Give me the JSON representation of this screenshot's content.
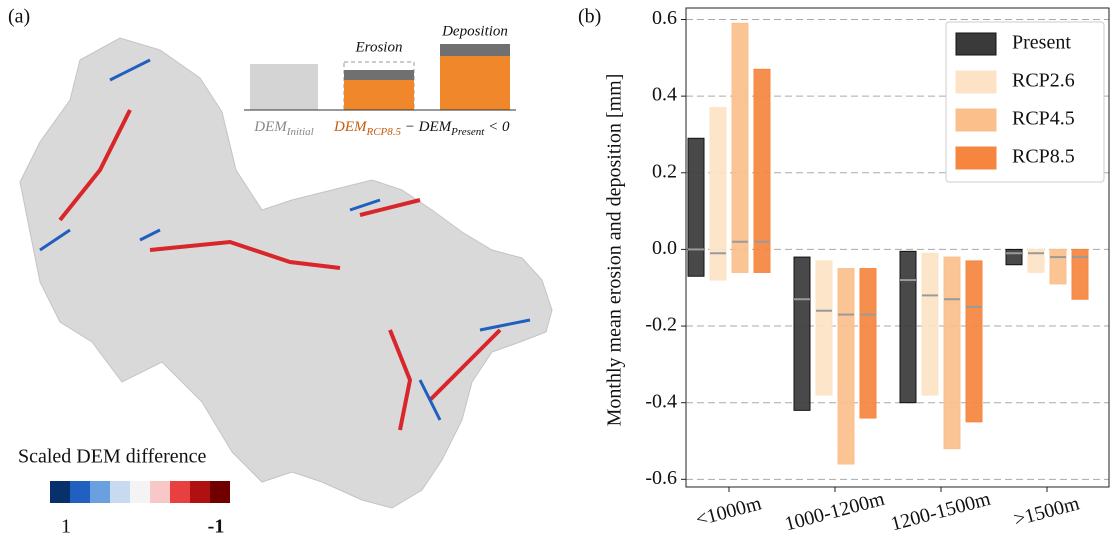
{
  "panel_a": {
    "label": "(a)",
    "inset": {
      "erosion": "Erosion",
      "deposition": "Deposition",
      "initial": [
        "DEM",
        "Initial"
      ],
      "difference": [
        "DEM",
        "RCP8.5",
        " − ",
        "DEM",
        "Present",
        " < 0"
      ]
    },
    "colorbar": {
      "title": "Scaled DEM difference",
      "ticks": [
        1,
        -1
      ]
    }
  },
  "chart_data": {
    "type": "bar",
    "panel_label": "(b)",
    "ylabel": "Monthly mean erosion and deposition [mm]",
    "categories": [
      "<1000m",
      "1000-1200m",
      "1200-1500m",
      ">1500m"
    ],
    "series": [
      {
        "name": "Present",
        "color": "#3a3a3a",
        "low": [
          -0.07,
          -0.42,
          -0.4,
          -0.04
        ],
        "high": [
          0.29,
          -0.02,
          -0.005,
          0.0
        ],
        "mean": [
          0.0,
          -0.13,
          -0.08,
          -0.01
        ]
      },
      {
        "name": "RCP2.6",
        "color": "#fde3c6",
        "low": [
          -0.08,
          -0.38,
          -0.38,
          -0.06
        ],
        "high": [
          0.37,
          -0.03,
          -0.01,
          0.0
        ],
        "mean": [
          -0.01,
          -0.16,
          -0.12,
          -0.01
        ]
      },
      {
        "name": "RCP4.5",
        "color": "#fbbf8c",
        "low": [
          -0.06,
          -0.56,
          -0.52,
          -0.09
        ],
        "high": [
          0.59,
          -0.05,
          -0.02,
          0.0
        ],
        "mean": [
          0.02,
          -0.17,
          -0.13,
          -0.02
        ]
      },
      {
        "name": "RCP8.5",
        "color": "#f5853f",
        "low": [
          -0.06,
          -0.44,
          -0.45,
          -0.13
        ],
        "high": [
          0.47,
          -0.05,
          -0.03,
          0.0
        ],
        "mean": [
          0.02,
          -0.17,
          -0.15,
          -0.02
        ]
      }
    ],
    "ylim": [
      -0.62,
      0.63
    ],
    "yticks": [
      -0.6,
      -0.4,
      -0.2,
      {
        "value": 0,
        "label": "0.0"
      },
      0.2,
      0.4,
      0.6
    ],
    "grid": true,
    "legend": "upper right"
  }
}
